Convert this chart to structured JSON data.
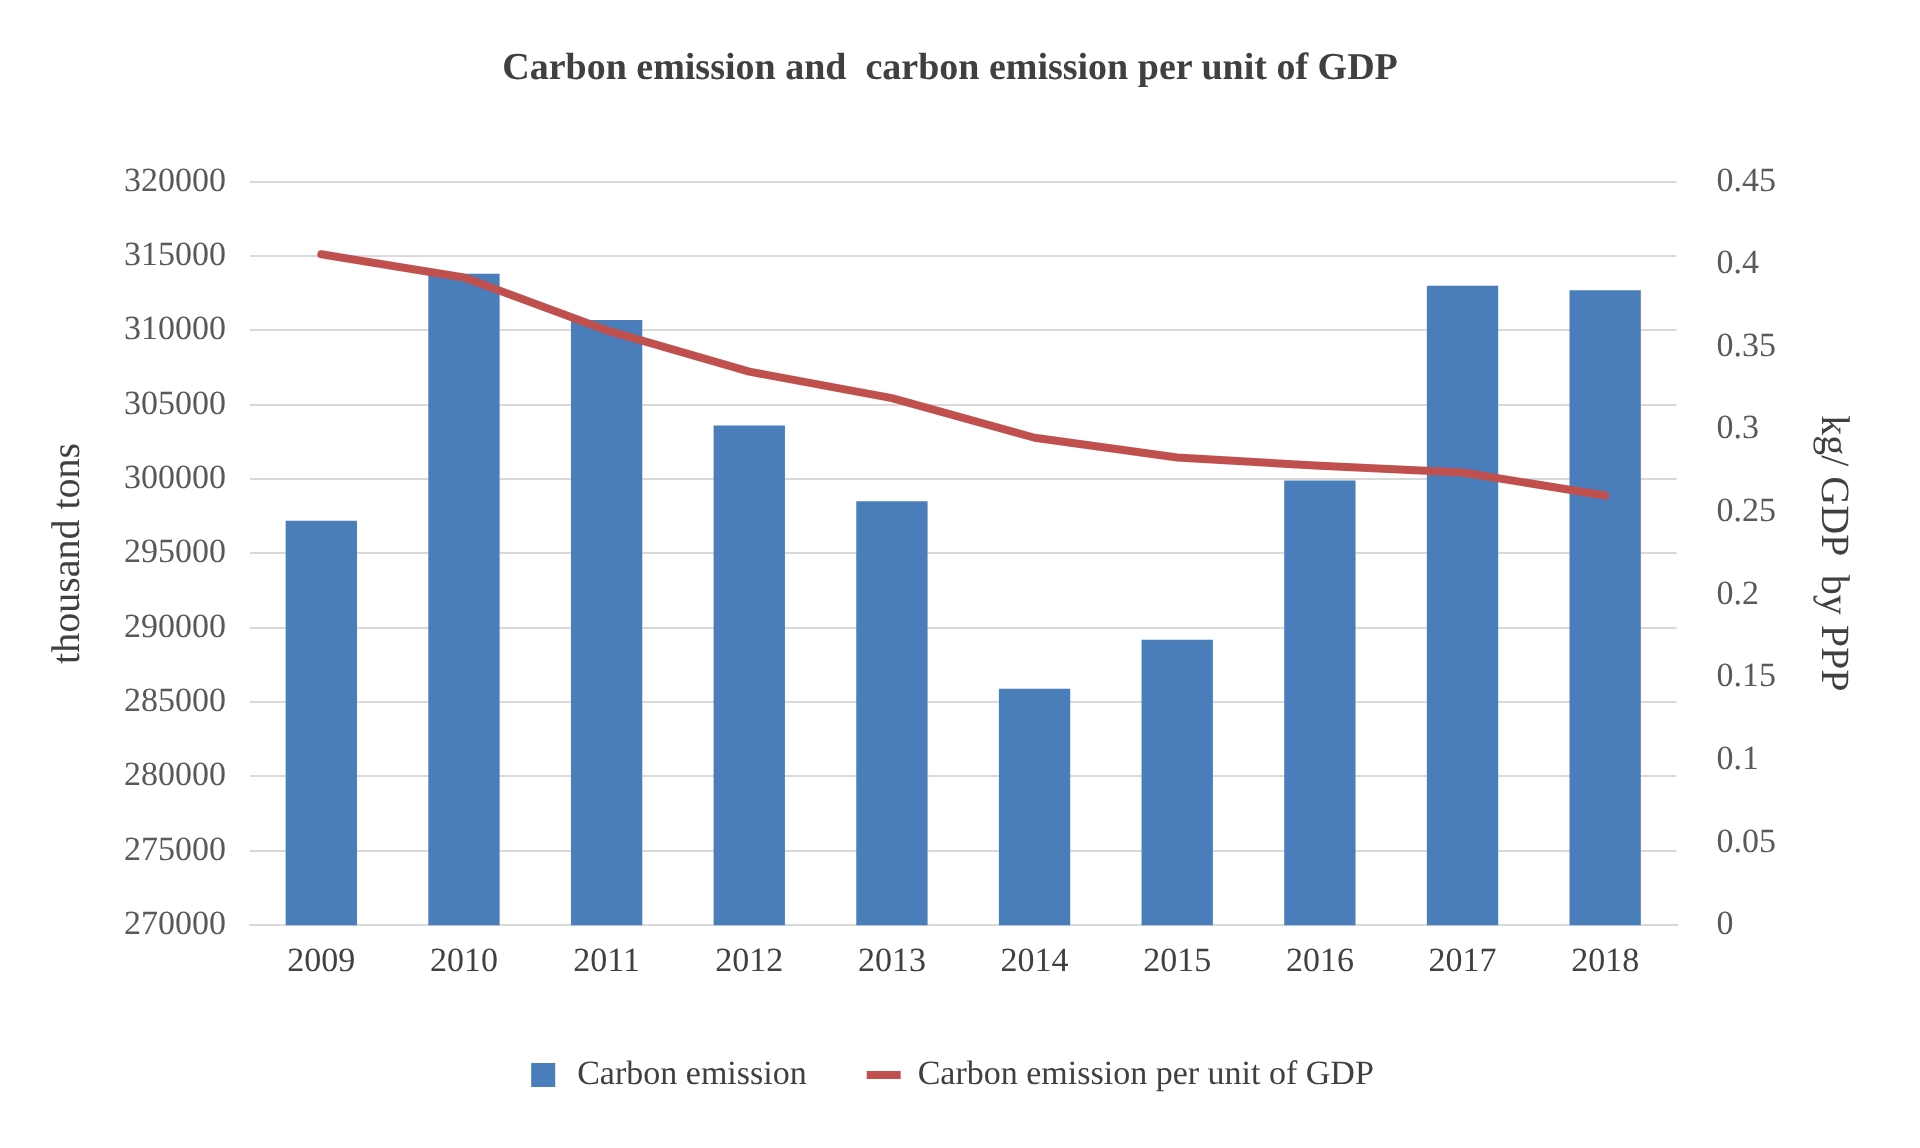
{
  "chart_data": {
    "type": "bar",
    "title": "Carbon emission and  carbon emission per unit of GDP",
    "ylabel": "thousand tons",
    "y2label": "kg/ GDP  by PPP",
    "categories": [
      "2009",
      "2010",
      "2011",
      "2012",
      "2013",
      "2014",
      "2015",
      "2016",
      "2017",
      "2018"
    ],
    "series": [
      {
        "name": "Carbon emission",
        "color": "#4a7ebb",
        "values": [
          297200,
          313800,
          310700,
          303600,
          298500,
          285900,
          289200,
          299900,
          313000,
          312700
        ]
      },
      {
        "name": "Carbon emission per unit of GDP",
        "type": "line",
        "axis": "y2",
        "color": "#c0504d",
        "values": [
          0.406,
          0.392,
          0.36,
          0.335,
          0.319,
          0.295,
          0.283,
          0.278,
          0.274,
          0.26
        ]
      }
    ],
    "ylim": [
      270000,
      320000
    ],
    "yticks": [
      270000,
      275000,
      280000,
      285000,
      290000,
      295000,
      300000,
      305000,
      310000,
      315000,
      320000
    ],
    "y2lim": [
      0,
      0.45
    ],
    "y2ticks": [
      0,
      0.05,
      0.1,
      0.15,
      0.2,
      0.25,
      0.3,
      0.35,
      0.4,
      0.45
    ],
    "grid": "y",
    "legend": "bottom",
    "marker": "none"
  }
}
